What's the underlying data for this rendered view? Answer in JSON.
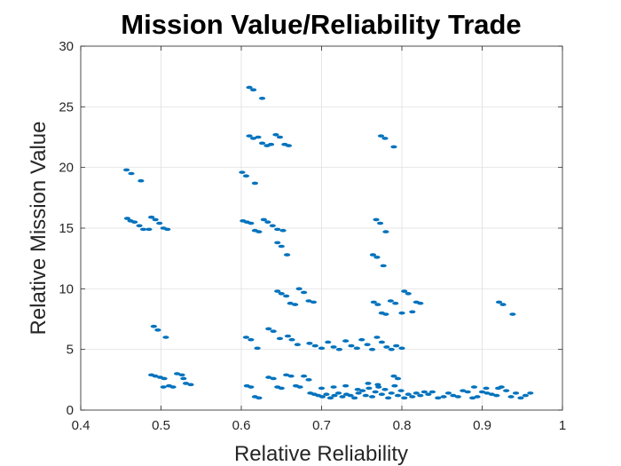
{
  "chart_data": {
    "type": "scatter",
    "title": "Mission Value/Reliability Trade",
    "xlabel": "Relative Reliability",
    "ylabel": "Relative Mission Value",
    "xlim": [
      0.4,
      1
    ],
    "ylim": [
      0,
      30
    ],
    "xticks": [
      "0.4",
      "0.5",
      "0.6",
      "0.7",
      "0.8",
      "0.9",
      "1"
    ],
    "yticks": [
      "0",
      "5",
      "10",
      "15",
      "20",
      "25",
      "30"
    ],
    "grid": true,
    "legend": "none",
    "marker_color": "#0072BD",
    "series": [
      {
        "points": [
          [
            0.457,
            19.8
          ],
          [
            0.463,
            19.5
          ],
          [
            0.475,
            18.9
          ],
          [
            0.458,
            15.8
          ],
          [
            0.462,
            15.6
          ],
          [
            0.467,
            15.5
          ],
          [
            0.473,
            15.2
          ],
          [
            0.478,
            14.9
          ],
          [
            0.485,
            14.9
          ],
          [
            0.488,
            15.9
          ],
          [
            0.493,
            15.7
          ],
          [
            0.498,
            15.4
          ],
          [
            0.503,
            15.0
          ],
          [
            0.508,
            14.9
          ],
          [
            0.491,
            6.9
          ],
          [
            0.496,
            6.6
          ],
          [
            0.506,
            6.0
          ],
          [
            0.488,
            2.9
          ],
          [
            0.493,
            2.8
          ],
          [
            0.499,
            2.7
          ],
          [
            0.504,
            2.6
          ],
          [
            0.51,
            2.0
          ],
          [
            0.515,
            1.9
          ],
          [
            0.503,
            1.9
          ],
          [
            0.52,
            3.0
          ],
          [
            0.526,
            2.9
          ],
          [
            0.531,
            2.2
          ],
          [
            0.537,
            2.1
          ],
          [
            0.528,
            2.6
          ],
          [
            0.61,
            26.6
          ],
          [
            0.615,
            26.4
          ],
          [
            0.626,
            25.7
          ],
          [
            0.61,
            22.6
          ],
          [
            0.615,
            22.4
          ],
          [
            0.621,
            22.5
          ],
          [
            0.626,
            22.0
          ],
          [
            0.632,
            21.8
          ],
          [
            0.637,
            21.9
          ],
          [
            0.643,
            22.7
          ],
          [
            0.648,
            22.5
          ],
          [
            0.654,
            21.9
          ],
          [
            0.659,
            21.8
          ],
          [
            0.601,
            19.6
          ],
          [
            0.606,
            19.3
          ],
          [
            0.617,
            18.7
          ],
          [
            0.602,
            15.6
          ],
          [
            0.607,
            15.5
          ],
          [
            0.612,
            15.4
          ],
          [
            0.617,
            14.8
          ],
          [
            0.622,
            14.7
          ],
          [
            0.628,
            15.7
          ],
          [
            0.633,
            15.5
          ],
          [
            0.639,
            15.2
          ],
          [
            0.645,
            14.9
          ],
          [
            0.652,
            14.8
          ],
          [
            0.645,
            13.8
          ],
          [
            0.65,
            13.5
          ],
          [
            0.657,
            12.8
          ],
          [
            0.645,
            9.8
          ],
          [
            0.65,
            9.6
          ],
          [
            0.656,
            9.4
          ],
          [
            0.661,
            8.8
          ],
          [
            0.667,
            8.7
          ],
          [
            0.672,
            10.0
          ],
          [
            0.678,
            9.7
          ],
          [
            0.684,
            9.0
          ],
          [
            0.69,
            8.9
          ],
          [
            0.606,
            6.0
          ],
          [
            0.612,
            5.8
          ],
          [
            0.62,
            5.1
          ],
          [
            0.634,
            6.7
          ],
          [
            0.64,
            6.5
          ],
          [
            0.648,
            5.9
          ],
          [
            0.658,
            6.1
          ],
          [
            0.663,
            5.8
          ],
          [
            0.67,
            5.4
          ],
          [
            0.607,
            2.0
          ],
          [
            0.612,
            1.9
          ],
          [
            0.617,
            1.1
          ],
          [
            0.622,
            1.0
          ],
          [
            0.634,
            2.7
          ],
          [
            0.64,
            2.6
          ],
          [
            0.645,
            1.9
          ],
          [
            0.65,
            1.8
          ],
          [
            0.656,
            2.9
          ],
          [
            0.662,
            2.8
          ],
          [
            0.668,
            2.0
          ],
          [
            0.673,
            1.9
          ],
          [
            0.678,
            2.8
          ],
          [
            0.684,
            2.5
          ],
          [
            0.686,
            1.4
          ],
          [
            0.691,
            1.3
          ],
          [
            0.696,
            1.2
          ],
          [
            0.701,
            1.1
          ],
          [
            0.706,
            1.3
          ],
          [
            0.711,
            1.0
          ],
          [
            0.716,
            1.2
          ],
          [
            0.721,
            1.4
          ],
          [
            0.726,
            1.1
          ],
          [
            0.731,
            1.3
          ],
          [
            0.736,
            1.2
          ],
          [
            0.741,
            1.0
          ],
          [
            0.746,
            1.4
          ],
          [
            0.751,
            1.6
          ],
          [
            0.755,
            1.2
          ],
          [
            0.759,
            1.8
          ],
          [
            0.763,
            1.1
          ],
          [
            0.767,
            1.5
          ],
          [
            0.771,
            1.9
          ],
          [
            0.775,
            1.3
          ],
          [
            0.779,
            1.7
          ],
          [
            0.783,
            1.0
          ],
          [
            0.787,
            1.4
          ],
          [
            0.791,
            2.0
          ],
          [
            0.795,
            1.2
          ],
          [
            0.799,
            1.6
          ],
          [
            0.803,
            1.0
          ],
          [
            0.808,
            1.3
          ],
          [
            0.813,
            1.1
          ],
          [
            0.818,
            1.4
          ],
          [
            0.823,
            1.2
          ],
          [
            0.828,
            1.5
          ],
          [
            0.833,
            1.3
          ],
          [
            0.838,
            1.5
          ],
          [
            0.845,
            1.0
          ],
          [
            0.852,
            1.1
          ],
          [
            0.858,
            1.4
          ],
          [
            0.864,
            1.2
          ],
          [
            0.87,
            1.1
          ],
          [
            0.876,
            1.6
          ],
          [
            0.882,
            1.5
          ],
          [
            0.888,
            1.0
          ],
          [
            0.894,
            1.1
          ],
          [
            0.9,
            1.5
          ],
          [
            0.906,
            1.4
          ],
          [
            0.912,
            1.3
          ],
          [
            0.918,
            1.2
          ],
          [
            0.924,
            1.9
          ],
          [
            0.93,
            1.6
          ],
          [
            0.936,
            1.1
          ],
          [
            0.942,
            1.4
          ],
          [
            0.948,
            1.0
          ],
          [
            0.954,
            1.2
          ],
          [
            0.96,
            1.4
          ],
          [
            0.89,
            1.9
          ],
          [
            0.905,
            1.8
          ],
          [
            0.92,
            1.8
          ],
          [
            0.7,
            1.8
          ],
          [
            0.715,
            1.9
          ],
          [
            0.73,
            2.0
          ],
          [
            0.745,
            1.7
          ],
          [
            0.758,
            2.2
          ],
          [
            0.77,
            2.1
          ],
          [
            0.79,
            2.8
          ],
          [
            0.795,
            2.6
          ],
          [
            0.685,
            5.5
          ],
          [
            0.692,
            5.3
          ],
          [
            0.7,
            5.1
          ],
          [
            0.708,
            5.6
          ],
          [
            0.715,
            5.2
          ],
          [
            0.722,
            5.0
          ],
          [
            0.73,
            5.7
          ],
          [
            0.737,
            5.3
          ],
          [
            0.744,
            5.1
          ],
          [
            0.75,
            5.8
          ],
          [
            0.757,
            5.4
          ],
          [
            0.763,
            5.0
          ],
          [
            0.769,
            6.0
          ],
          [
            0.775,
            5.6
          ],
          [
            0.781,
            5.2
          ],
          [
            0.787,
            5.0
          ],
          [
            0.793,
            5.3
          ],
          [
            0.8,
            5.1
          ],
          [
            0.774,
            22.6
          ],
          [
            0.779,
            22.4
          ],
          [
            0.79,
            21.7
          ],
          [
            0.768,
            15.7
          ],
          [
            0.773,
            15.4
          ],
          [
            0.78,
            14.7
          ],
          [
            0.764,
            12.8
          ],
          [
            0.769,
            12.6
          ],
          [
            0.777,
            11.9
          ],
          [
            0.765,
            8.9
          ],
          [
            0.77,
            8.7
          ],
          [
            0.775,
            8.0
          ],
          [
            0.78,
            7.9
          ],
          [
            0.786,
            9.0
          ],
          [
            0.792,
            8.8
          ],
          [
            0.803,
            9.8
          ],
          [
            0.808,
            9.6
          ],
          [
            0.813,
            8.1
          ],
          [
            0.818,
            8.9
          ],
          [
            0.823,
            8.8
          ],
          [
            0.8,
            8.0
          ],
          [
            0.921,
            8.9
          ],
          [
            0.926,
            8.7
          ],
          [
            0.938,
            7.9
          ]
        ]
      }
    ]
  }
}
